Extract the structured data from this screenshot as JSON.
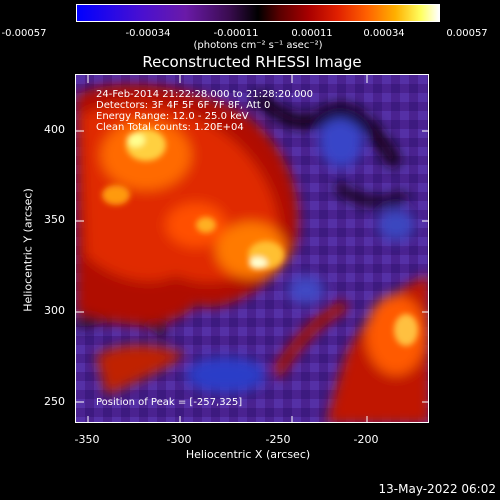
{
  "colorbar": {
    "ticks": [
      "-0.00057",
      "-0.00034",
      "-0.00011",
      "0.00011",
      "0.00034",
      "0.00057"
    ],
    "units": "(photons cm⁻² s⁻¹ asec⁻²)"
  },
  "title": "Reconstructed RHESSI Image",
  "annotations": {
    "time": "24-Feb-2014 21:22:28.000 to 21:28:20.000",
    "detectors": "Detectors: 3F 4F 5F 6F 7F 8F, Att 0",
    "energy": "Energy Range: 12.0 - 25.0 keV",
    "clean": "Clean     Total counts: 1.20E+04",
    "peak": "Position of Peak = [-257,325]"
  },
  "axes": {
    "xlabel": "Heliocentric X (arcsec)",
    "ylabel": "Heliocentric Y (arcsec)",
    "xticks": [
      "-350",
      "-300",
      "-250",
      "-200"
    ],
    "yticks": [
      "250",
      "300",
      "350",
      "400"
    ],
    "xrange": [
      -361,
      -207
    ],
    "yrange": [
      238,
      425
    ]
  },
  "footer": {
    "date": "13-May-2022 06:02"
  },
  "colors": {
    "background": "#000000",
    "low": "#0000ff",
    "mid": "#000000",
    "high": "#ffff00"
  }
}
